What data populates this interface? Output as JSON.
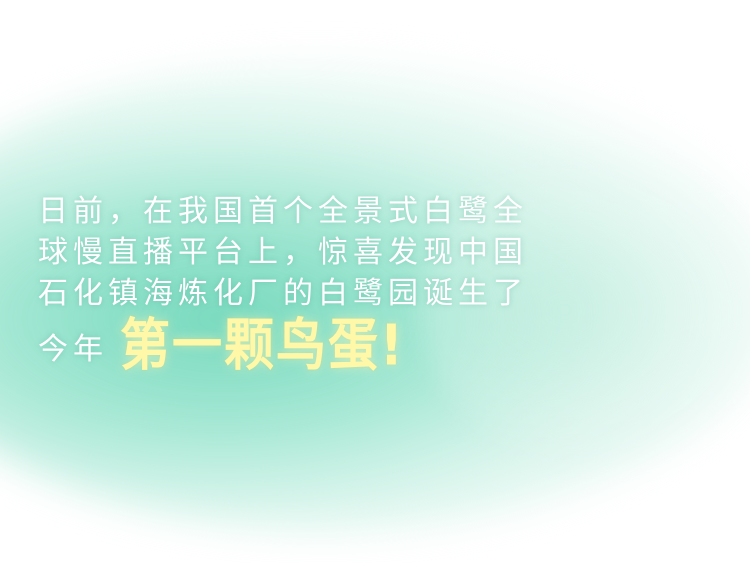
{
  "caption": {
    "lines": [
      "日前，在我国首个全景式白鹭全",
      "球慢直播平台上，惊喜发现中国",
      "石化镇海炼化厂的白鹭园诞生了"
    ],
    "last_line_lead": "今年",
    "highlight": "第一颗鸟蛋!"
  },
  "colors": {
    "background": "#ffffff",
    "glow": "#6ed7b9",
    "text": "#ffffff",
    "highlight": "#fff8a8"
  }
}
